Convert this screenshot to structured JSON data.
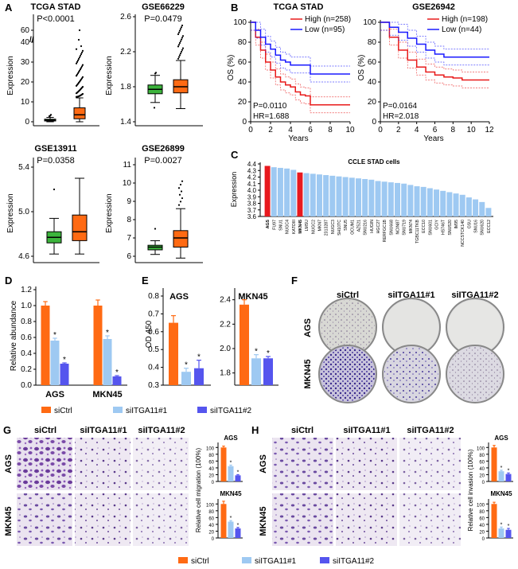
{
  "panels": {
    "A": {
      "letter": "A",
      "ylabel": "Expression",
      "plots": [
        {
          "title": "TCGA STAD",
          "p": "P<0.0001",
          "ticks": [
            "0",
            "10",
            "20",
            "30",
            "40",
            "60"
          ],
          "break_mark": "//"
        },
        {
          "title": "GSE66229",
          "p": "P=0.0479",
          "ticks": [
            "1.4",
            "1.8",
            "2.2",
            "2.6"
          ]
        },
        {
          "title": "GSE13911",
          "p": "P=0.0358",
          "ticks": [
            "4.6",
            "5.0",
            "5.4"
          ]
        },
        {
          "title": "GSE26899",
          "p": "P=0.0027",
          "ticks": [
            "6",
            "7",
            "8",
            "9",
            "10",
            "11"
          ]
        }
      ]
    },
    "B": {
      "letter": "B",
      "ylabel": "OS (%)",
      "xlabel": "Years",
      "plots": [
        {
          "title": "TCGA STAD",
          "high": "High (n=258)",
          "low": "Low (n=95)",
          "p": "P=0.0110",
          "hr": "HR=1.688",
          "xticks": [
            "0",
            "2",
            "4",
            "6",
            "8",
            "10"
          ],
          "yticks": [
            "0",
            "20",
            "40",
            "60",
            "80",
            "100"
          ]
        },
        {
          "title": "GSE26942",
          "high": "High (n=198)",
          "low": "Low (n=44)",
          "p": "P=0.0164",
          "hr": "HR=2.018",
          "xticks": [
            "0",
            "2",
            "4",
            "6",
            "8",
            "10",
            "12"
          ],
          "yticks": [
            "0",
            "20",
            "40",
            "60",
            "80",
            "100"
          ]
        }
      ]
    },
    "C": {
      "letter": "C",
      "title": "CCLE STAD cells",
      "ylabel": "Expression",
      "yticks": [
        "3.6",
        "3.7",
        "3.8",
        "3.9",
        "4.0",
        "4.1",
        "4.2",
        "4.3",
        "4.4"
      ]
    },
    "D": {
      "letter": "D",
      "ylabel": "Relative abundance",
      "yticks": [
        "0.0",
        "0.2",
        "0.4",
        "0.6",
        "0.8",
        "1.0",
        "1.2"
      ],
      "categories": [
        "AGS",
        "MKN45"
      ],
      "star": "*"
    },
    "E": {
      "letter": "E",
      "ylabel": "OD 450",
      "plots": [
        {
          "title": "AGS",
          "yticks": [
            "0.3",
            "0.4",
            "0.5",
            "0.6",
            "0.7",
            "0.8"
          ]
        },
        {
          "title": "MKN45",
          "yticks": [
            "1.8",
            "2.0",
            "2.2",
            "2.4"
          ]
        }
      ]
    },
    "F": {
      "letter": "F",
      "cols": [
        "siCtrl",
        "siITGA11#1",
        "siITGA11#2"
      ],
      "rows": [
        "AGS",
        "MKN45"
      ]
    },
    "G": {
      "letter": "G",
      "cols": [
        "siCtrl",
        "siITGA11#1",
        "siITGA11#2"
      ],
      "rows": [
        "AGS",
        "MKN45"
      ],
      "ylabel": "Relative cell migration (100%)",
      "mini_titles": [
        "AGS",
        "MKN45"
      ],
      "yticks": [
        "0",
        "20",
        "40",
        "60",
        "80",
        "100"
      ]
    },
    "H": {
      "letter": "H",
      "cols": [
        "siCtrl",
        "siITGA11#1",
        "siITGA11#2"
      ],
      "rows": [
        "AGS",
        "MKN45"
      ],
      "ylabel": "Relative cell invasion (100%)",
      "mini_titles": [
        "AGS",
        "MKN45"
      ],
      "yticks": [
        "0",
        "20",
        "40",
        "60",
        "80",
        "100"
      ]
    }
  },
  "legend": {
    "items": [
      {
        "label": "siCtrl",
        "color": "#ff6a13"
      },
      {
        "label": "siITGA11#1",
        "color": "#9ec9f2"
      },
      {
        "label": "siITGA11#2",
        "color": "#5555ee"
      }
    ]
  },
  "colors": {
    "orange": "#ff6a13",
    "green": "#3cb43c",
    "light_blue": "#9ec9f2",
    "blue": "#5555ee",
    "red": "#e8191e",
    "km_blue": "#1a1aff",
    "km_red": "#e81a1a"
  },
  "chart_data": [
    {
      "type": "box",
      "title": "TCGA STAD",
      "ylabel": "Expression",
      "series": [
        {
          "color": "green",
          "min": 0,
          "q1": 0.4,
          "median": 0.8,
          "q3": 1.3,
          "max": 2.2
        },
        {
          "color": "orange",
          "min": 0,
          "q1": 1.5,
          "median": 3.5,
          "q3": 7,
          "max": 12
        }
      ]
    },
    {
      "type": "box",
      "title": "GSE66229",
      "ylabel": "Expression",
      "ylim": [
        1.4,
        2.6
      ],
      "series": [
        {
          "color": "green",
          "min": 1.62,
          "q1": 1.72,
          "median": 1.77,
          "q3": 1.82,
          "max": 1.93
        },
        {
          "color": "orange",
          "min": 1.55,
          "q1": 1.73,
          "median": 1.8,
          "q3": 1.88,
          "max": 2.1
        }
      ]
    },
    {
      "type": "box",
      "title": "GSE13911",
      "ylabel": "Expression",
      "ylim": [
        4.6,
        5.5
      ],
      "series": [
        {
          "color": "green",
          "min": 4.62,
          "q1": 4.72,
          "median": 4.77,
          "q3": 4.82,
          "max": 4.94
        },
        {
          "color": "orange",
          "min": 4.62,
          "q1": 4.74,
          "median": 4.82,
          "q3": 4.97,
          "max": 5.3
        }
      ]
    },
    {
      "type": "box",
      "title": "GSE26899",
      "ylabel": "Expression",
      "ylim": [
        6,
        11
      ],
      "series": [
        {
          "color": "green",
          "min": 6.1,
          "q1": 6.35,
          "median": 6.5,
          "q3": 6.6,
          "max": 6.85
        },
        {
          "color": "orange",
          "min": 5.9,
          "q1": 6.5,
          "median": 7.0,
          "q3": 7.4,
          "max": 8.6
        }
      ]
    },
    {
      "type": "line",
      "title": "TCGA STAD",
      "xlabel": "Years",
      "ylabel": "OS (%)",
      "xlim": [
        0,
        10
      ],
      "ylim": [
        0,
        100
      ],
      "series": [
        {
          "name": "High (n=258)",
          "color": "red",
          "x": [
            0,
            0.5,
            1,
            1.5,
            2,
            2.5,
            3,
            3.5,
            4,
            4.5,
            5,
            5.5,
            6,
            7,
            8,
            10
          ],
          "y": [
            100,
            85,
            72,
            60,
            52,
            45,
            40,
            37,
            35,
            30,
            27,
            26,
            17,
            17,
            17,
            17
          ]
        },
        {
          "name": "Low (n=95)",
          "color": "blue",
          "x": [
            0,
            0.5,
            1,
            1.5,
            2,
            2.5,
            3,
            3.5,
            4,
            5,
            6,
            10
          ],
          "y": [
            100,
            92,
            85,
            78,
            73,
            67,
            62,
            60,
            57,
            57,
            48,
            48
          ]
        }
      ]
    },
    {
      "type": "line",
      "title": "GSE26942",
      "xlabel": "Years",
      "ylabel": "OS (%)",
      "xlim": [
        0,
        12
      ],
      "ylim": [
        0,
        100
      ],
      "series": [
        {
          "name": "High (n=198)",
          "color": "red",
          "x": [
            0,
            1,
            2,
            3,
            4,
            5,
            6,
            7,
            8,
            9,
            10,
            12
          ],
          "y": [
            100,
            85,
            72,
            62,
            55,
            50,
            47,
            45,
            44,
            42,
            42,
            42
          ]
        },
        {
          "name": "Low (n=44)",
          "color": "blue",
          "x": [
            0,
            1,
            2,
            3,
            4,
            5,
            6,
            7,
            8,
            12
          ],
          "y": [
            100,
            95,
            90,
            84,
            78,
            72,
            68,
            65,
            65,
            65
          ]
        }
      ]
    },
    {
      "type": "bar",
      "title": "CCLE STAD cells",
      "ylabel": "Expression",
      "ylim": [
        3.6,
        4.4
      ],
      "highlight": [
        "AGS",
        "MKN45"
      ],
      "categories": [
        "AGS",
        "FU97",
        "SNU1",
        "NUGC4",
        "KATOIII",
        "MKN45",
        "LMSU",
        "NUGC2",
        "MKN7",
        "2313287",
        "NUGC3",
        "SH10TC",
        "SNU5",
        "OCUM1",
        "AZ521",
        "SNU216",
        "HUGIN",
        "HGC27",
        "RERFGC1B",
        "SNU668",
        "NCIN87",
        "SNU719",
        "MKN74",
        "TGBC11TKB",
        "ECC10",
        "SNU601",
        "GCIY",
        "HS746T",
        "SNU520",
        "IM95",
        "NCCSTCK140",
        "GSU",
        "SNU16",
        "SNU620",
        "ECC12"
      ],
      "values": [
        4.37,
        4.35,
        4.34,
        4.33,
        4.31,
        4.27,
        4.26,
        4.25,
        4.24,
        4.23,
        4.22,
        4.21,
        4.2,
        4.19,
        4.18,
        4.17,
        4.16,
        4.14,
        4.13,
        4.12,
        4.11,
        4.1,
        4.08,
        4.06,
        4.05,
        4.03,
        4.01,
        3.99,
        3.97,
        3.95,
        3.93,
        3.89,
        3.86,
        3.82,
        3.73
      ]
    },
    {
      "type": "bar",
      "ylabel": "Relative abundance",
      "categories": [
        "AGS",
        "MKN45"
      ],
      "ylim": [
        0,
        1.2
      ],
      "series": [
        {
          "name": "siCtrl",
          "values": [
            1.0,
            1.0
          ],
          "err": [
            0.05,
            0.07
          ]
        },
        {
          "name": "siITGA11#1",
          "values": [
            0.56,
            0.58
          ],
          "err": [
            0.03,
            0.04
          ]
        },
        {
          "name": "siITGA11#2",
          "values": [
            0.27,
            0.11
          ],
          "err": [
            0.01,
            0.01
          ]
        }
      ]
    },
    {
      "type": "bar",
      "title": "AGS",
      "ylabel": "OD 450",
      "ylim": [
        0.3,
        0.8
      ],
      "series": [
        {
          "name": "siCtrl",
          "values": [
            0.65
          ],
          "err": [
            0.04
          ]
        },
        {
          "name": "siITGA11#1",
          "values": [
            0.375
          ],
          "err": [
            0.02
          ]
        },
        {
          "name": "siITGA11#2",
          "values": [
            0.395
          ],
          "err": [
            0.045
          ]
        }
      ]
    },
    {
      "type": "bar",
      "title": "MKN45",
      "ylabel": "OD 450",
      "ylim": [
        1.7,
        2.45
      ],
      "series": [
        {
          "name": "siCtrl",
          "values": [
            2.36
          ],
          "err": [
            0.04
          ]
        },
        {
          "name": "siITGA11#1",
          "values": [
            1.92
          ],
          "err": [
            0.03
          ]
        },
        {
          "name": "siITGA11#2",
          "values": [
            1.92
          ],
          "err": [
            0.015
          ]
        }
      ]
    },
    {
      "type": "bar",
      "title": "AGS",
      "ylabel": "Relative cell migration (100%)",
      "ylim": [
        0,
        110
      ],
      "series": [
        {
          "name": "siCtrl",
          "values": [
            100
          ],
          "err": [
            4
          ]
        },
        {
          "name": "siITGA11#1",
          "values": [
            45
          ],
          "err": [
            3
          ]
        },
        {
          "name": "siITGA11#2",
          "values": [
            18
          ],
          "err": [
            2
          ]
        }
      ]
    },
    {
      "type": "bar",
      "title": "MKN45",
      "ylabel": "Relative cell migration (100%)",
      "ylim": [
        0,
        110
      ],
      "series": [
        {
          "name": "siCtrl",
          "values": [
            100
          ],
          "err": [
            8
          ]
        },
        {
          "name": "siITGA11#1",
          "values": [
            48
          ],
          "err": [
            3
          ]
        },
        {
          "name": "siITGA11#2",
          "values": [
            28
          ],
          "err": [
            3
          ]
        }
      ]
    },
    {
      "type": "bar",
      "title": "AGS",
      "ylabel": "Relative cell invasion (100%)",
      "ylim": [
        0,
        110
      ],
      "series": [
        {
          "name": "siCtrl",
          "values": [
            100
          ],
          "err": [
            6
          ]
        },
        {
          "name": "siITGA11#1",
          "values": [
            30
          ],
          "err": [
            3
          ]
        },
        {
          "name": "siITGA11#2",
          "values": [
            22
          ],
          "err": [
            3
          ]
        }
      ]
    },
    {
      "type": "bar",
      "title": "MKN45",
      "ylabel": "Relative cell invasion (100%)",
      "ylim": [
        0,
        110
      ],
      "series": [
        {
          "name": "siCtrl",
          "values": [
            100
          ],
          "err": [
            5
          ]
        },
        {
          "name": "siITGA11#1",
          "values": [
            28
          ],
          "err": [
            4
          ]
        },
        {
          "name": "siITGA11#2",
          "values": [
            24
          ],
          "err": [
            4
          ]
        }
      ]
    }
  ]
}
